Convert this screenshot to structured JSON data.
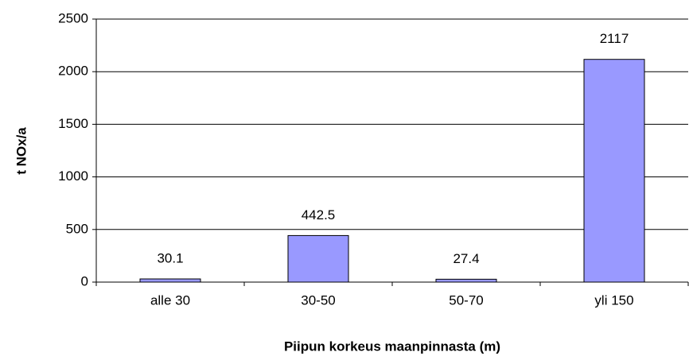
{
  "chart_data": {
    "type": "bar",
    "x_label": "Piipun korkeus maanpinnasta (m)",
    "y_label": "t NOx/a",
    "categories": [
      "alle 30",
      "30-50",
      "50-70",
      "yli 150"
    ],
    "values": [
      30.1,
      442.5,
      27.4,
      2117
    ],
    "color": "#9999ff",
    "ylim": [
      0,
      2500
    ],
    "yticks": [
      0,
      500,
      1000,
      1500,
      2000,
      2500
    ],
    "grid": true
  }
}
